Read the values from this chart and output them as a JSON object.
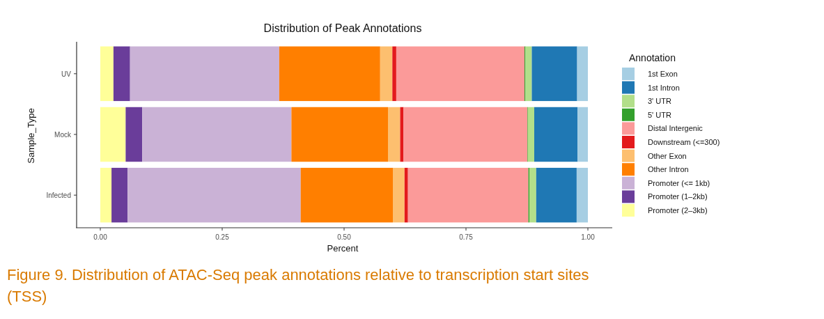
{
  "chart_data": {
    "type": "bar",
    "orientation": "horizontal",
    "stacked": true,
    "title": "Distribution of Peak Annotations",
    "xlabel": "Percent",
    "ylabel": "Sample_Type",
    "legend_title": "Annotation",
    "legend": "right",
    "categories": [
      "UV",
      "Mock",
      "Infected"
    ],
    "xlim": [
      -0.05,
      1.05
    ],
    "xticks": [
      {
        "value": 0,
        "label": "0.00"
      },
      {
        "value": 0.25,
        "label": "0.25"
      },
      {
        "value": 0.5,
        "label": "0.50"
      },
      {
        "value": 0.75,
        "label": "0.75"
      },
      {
        "value": 1,
        "label": "1.00"
      }
    ],
    "series": [
      {
        "name": "Promoter (2–3kb)",
        "color": "#ffff99",
        "values": [
          0.027,
          0.052,
          0.023
        ]
      },
      {
        "name": "Promoter (1–2kb)",
        "color": "#6a3d9a",
        "values": [
          0.034,
          0.034,
          0.033
        ]
      },
      {
        "name": "Promoter (<= 1kb)",
        "color": "#cab2d6",
        "values": [
          0.306,
          0.306,
          0.355
        ]
      },
      {
        "name": "Other Intron",
        "color": "#ff7f00",
        "values": [
          0.207,
          0.198,
          0.189
        ]
      },
      {
        "name": "Other Exon",
        "color": "#fdbf6f",
        "values": [
          0.025,
          0.025,
          0.024
        ]
      },
      {
        "name": "Downstream (<=300)",
        "color": "#e31a1c",
        "values": [
          0.008,
          0.007,
          0.007
        ]
      },
      {
        "name": "Distal Intergenic",
        "color": "#fb9a99",
        "values": [
          0.263,
          0.254,
          0.247
        ]
      },
      {
        "name": "5' UTR",
        "color": "#33a02c",
        "values": [
          0.002,
          0.001,
          0.002
        ]
      },
      {
        "name": "3' UTR",
        "color": "#b2df8a",
        "values": [
          0.013,
          0.013,
          0.014
        ]
      },
      {
        "name": "1st Intron",
        "color": "#1f78b4",
        "values": [
          0.093,
          0.089,
          0.083
        ]
      },
      {
        "name": "1st Exon",
        "color": "#a6cee3",
        "values": [
          0.022,
          0.021,
          0.023
        ]
      }
    ],
    "annotations": [
      "Figure 9. Distribution of ATAC-Seq peak annotations relative to transcription start sites (TSS)"
    ]
  }
}
